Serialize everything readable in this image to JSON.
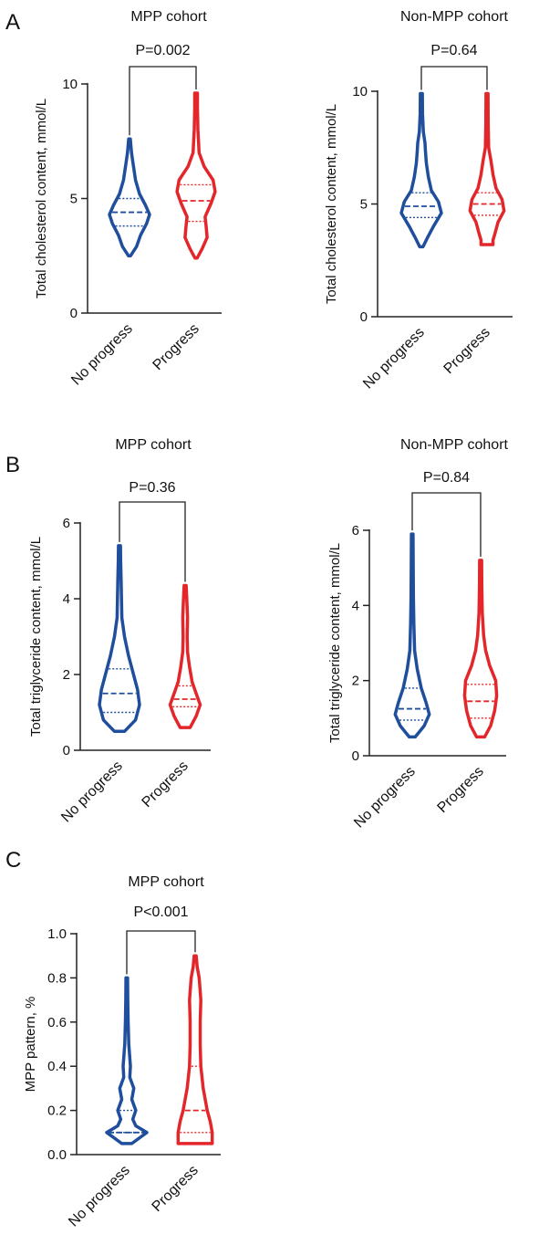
{
  "panel_labels": [
    "A",
    "B",
    "C"
  ],
  "colors": {
    "no_progress": "#1f4e9c",
    "progress": "#e3262a",
    "axis": "#222222"
  },
  "chart_data": [
    {
      "type": "violin",
      "panel": "A",
      "title": "MPP cohort",
      "ylabel": "Total cholesterol content, mmol/L",
      "xlabel": "",
      "ylim": [
        0,
        10
      ],
      "yticks": [
        0,
        5,
        10
      ],
      "ytick_labels": [
        "0",
        "5",
        "10"
      ],
      "categories": [
        "No progress",
        "Progress"
      ],
      "p_value": "P=0.002",
      "grid": false,
      "series": [
        {
          "min": 2.5,
          "max": 7.6,
          "q1": 3.8,
          "median": 4.4,
          "q3": 5.0,
          "profile": [
            [
              2.5,
              0.05
            ],
            [
              2.9,
              0.35
            ],
            [
              3.4,
              0.55
            ],
            [
              3.9,
              0.85
            ],
            [
              4.3,
              1.0
            ],
            [
              4.7,
              0.8
            ],
            [
              5.2,
              0.5
            ],
            [
              5.8,
              0.3
            ],
            [
              6.5,
              0.18
            ],
            [
              7.0,
              0.1
            ],
            [
              7.6,
              0.04
            ]
          ]
        },
        {
          "min": 2.4,
          "max": 9.6,
          "q1": 4.0,
          "median": 4.9,
          "q3": 5.6,
          "profile": [
            [
              2.4,
              0.05
            ],
            [
              2.8,
              0.3
            ],
            [
              3.3,
              0.55
            ],
            [
              3.8,
              0.5
            ],
            [
              4.2,
              0.45
            ],
            [
              4.8,
              0.75
            ],
            [
              5.3,
              0.95
            ],
            [
              5.8,
              0.85
            ],
            [
              6.4,
              0.4
            ],
            [
              7.0,
              0.15
            ],
            [
              8.0,
              0.09
            ],
            [
              9.0,
              0.07
            ],
            [
              9.6,
              0.07
            ]
          ]
        }
      ]
    },
    {
      "type": "violin",
      "panel": "A",
      "title": "Non-MPP cohort",
      "ylabel": "Total cholesterol content, mmol/L",
      "xlabel": "",
      "ylim": [
        0,
        10
      ],
      "yticks": [
        0,
        5,
        10
      ],
      "ytick_labels": [
        "0",
        "5",
        "10"
      ],
      "categories": [
        "No progress",
        "Progress"
      ],
      "p_value": "P=0.64",
      "grid": false,
      "series": [
        {
          "min": 3.1,
          "max": 9.9,
          "q1": 4.4,
          "median": 4.9,
          "q3": 5.5,
          "profile": [
            [
              3.1,
              0.08
            ],
            [
              3.5,
              0.3
            ],
            [
              4.0,
              0.6
            ],
            [
              4.6,
              1.0
            ],
            [
              5.1,
              0.85
            ],
            [
              5.6,
              0.5
            ],
            [
              6.2,
              0.35
            ],
            [
              6.8,
              0.25
            ],
            [
              7.4,
              0.2
            ],
            [
              7.7,
              0.18
            ],
            [
              8.2,
              0.1
            ],
            [
              9.0,
              0.06
            ],
            [
              9.9,
              0.05
            ]
          ]
        },
        {
          "min": 3.2,
          "max": 9.9,
          "q1": 4.5,
          "median": 5.0,
          "q3": 5.5,
          "profile": [
            [
              3.2,
              0.3
            ],
            [
              3.4,
              0.3
            ],
            [
              3.7,
              0.4
            ],
            [
              4.2,
              0.55
            ],
            [
              4.7,
              0.85
            ],
            [
              5.2,
              0.75
            ],
            [
              5.7,
              0.45
            ],
            [
              6.3,
              0.3
            ],
            [
              6.9,
              0.2
            ],
            [
              7.5,
              0.08
            ],
            [
              8.5,
              0.06
            ],
            [
              9.9,
              0.05
            ]
          ]
        }
      ]
    },
    {
      "type": "violin",
      "panel": "B",
      "title": "MPP cohort",
      "ylabel": "Total triglyceride content, mmol/L",
      "xlabel": "",
      "ylim": [
        0,
        6
      ],
      "yticks": [
        0,
        2,
        4,
        6
      ],
      "ytick_labels": [
        "0",
        "2",
        "4",
        "6"
      ],
      "categories": [
        "No progress",
        "Progress"
      ],
      "p_value": "P=0.36",
      "grid": false,
      "series": [
        {
          "min": 0.5,
          "max": 5.4,
          "q1": 1.0,
          "median": 1.5,
          "q3": 2.15,
          "profile": [
            [
              0.5,
              0.25
            ],
            [
              0.8,
              0.8
            ],
            [
              1.2,
              1.0
            ],
            [
              1.6,
              0.9
            ],
            [
              2.0,
              0.7
            ],
            [
              2.5,
              0.45
            ],
            [
              3.0,
              0.25
            ],
            [
              3.5,
              0.12
            ],
            [
              4.0,
              0.1
            ],
            [
              4.5,
              0.08
            ],
            [
              5.0,
              0.06
            ],
            [
              5.4,
              0.05
            ]
          ]
        },
        {
          "min": 0.6,
          "max": 4.35,
          "q1": 1.15,
          "median": 1.35,
          "q3": 1.7,
          "profile": [
            [
              0.6,
              0.25
            ],
            [
              0.9,
              0.55
            ],
            [
              1.2,
              0.75
            ],
            [
              1.5,
              0.55
            ],
            [
              1.8,
              0.35
            ],
            [
              2.2,
              0.22
            ],
            [
              2.6,
              0.12
            ],
            [
              3.0,
              0.1
            ],
            [
              3.5,
              0.12
            ],
            [
              4.0,
              0.08
            ],
            [
              4.35,
              0.05
            ]
          ]
        }
      ]
    },
    {
      "type": "violin",
      "panel": "B",
      "title": "Non-MPP cohort",
      "ylabel": "Total triglyceride content, mmol/L",
      "xlabel": "",
      "ylim": [
        0,
        6
      ],
      "yticks": [
        0,
        2,
        4,
        6
      ],
      "ytick_labels": [
        "0",
        "2",
        "4",
        "6"
      ],
      "categories": [
        "No progress",
        "Progress"
      ],
      "p_value": "P=0.84",
      "grid": false,
      "series": [
        {
          "min": 0.5,
          "max": 5.9,
          "q1": 0.95,
          "median": 1.25,
          "q3": 1.8,
          "profile": [
            [
              0.5,
              0.15
            ],
            [
              0.8,
              0.6
            ],
            [
              1.1,
              0.85
            ],
            [
              1.4,
              0.7
            ],
            [
              1.8,
              0.45
            ],
            [
              2.3,
              0.25
            ],
            [
              2.8,
              0.12
            ],
            [
              3.5,
              0.08
            ],
            [
              4.2,
              0.06
            ],
            [
              5.0,
              0.05
            ],
            [
              5.9,
              0.04
            ]
          ]
        },
        {
          "min": 0.5,
          "max": 5.2,
          "q1": 1.0,
          "median": 1.45,
          "q3": 1.9,
          "profile": [
            [
              0.5,
              0.2
            ],
            [
              0.8,
              0.5
            ],
            [
              1.2,
              0.7
            ],
            [
              1.6,
              0.8
            ],
            [
              2.0,
              0.75
            ],
            [
              2.4,
              0.45
            ],
            [
              2.8,
              0.25
            ],
            [
              3.2,
              0.15
            ],
            [
              3.8,
              0.08
            ],
            [
              4.5,
              0.06
            ],
            [
              5.2,
              0.05
            ]
          ]
        }
      ]
    },
    {
      "type": "violin",
      "panel": "C",
      "title": "MPP cohort",
      "ylabel": "MPP pattern, %",
      "xlabel": "",
      "ylim": [
        0,
        1.0
      ],
      "yticks": [
        0.0,
        0.2,
        0.4,
        0.6,
        0.8,
        1.0
      ],
      "ytick_labels": [
        "0.0",
        "0.2",
        "0.4",
        "0.6",
        "0.8",
        "1.0"
      ],
      "categories": [
        "No progress",
        "Progress"
      ],
      "p_value": "P<0.001",
      "grid": false,
      "series": [
        {
          "min": 0.05,
          "max": 0.8,
          "q1": 0.1,
          "median": 0.1,
          "q3": 0.2,
          "profile": [
            [
              0.05,
              0.25
            ],
            [
              0.08,
              0.7
            ],
            [
              0.1,
              1.0
            ],
            [
              0.13,
              0.45
            ],
            [
              0.16,
              0.3
            ],
            [
              0.2,
              0.45
            ],
            [
              0.25,
              0.25
            ],
            [
              0.3,
              0.35
            ],
            [
              0.35,
              0.15
            ],
            [
              0.4,
              0.18
            ],
            [
              0.5,
              0.1
            ],
            [
              0.6,
              0.07
            ],
            [
              0.7,
              0.05
            ],
            [
              0.8,
              0.04
            ]
          ]
        },
        {
          "min": 0.05,
          "max": 0.9,
          "q1": 0.1,
          "median": 0.2,
          "q3": 0.4,
          "profile": [
            [
              0.05,
              0.85
            ],
            [
              0.1,
              0.85
            ],
            [
              0.15,
              0.75
            ],
            [
              0.2,
              0.6
            ],
            [
              0.3,
              0.4
            ],
            [
              0.4,
              0.28
            ],
            [
              0.5,
              0.25
            ],
            [
              0.6,
              0.25
            ],
            [
              0.7,
              0.28
            ],
            [
              0.8,
              0.2
            ],
            [
              0.85,
              0.1
            ],
            [
              0.9,
              0.05
            ]
          ]
        }
      ]
    }
  ]
}
